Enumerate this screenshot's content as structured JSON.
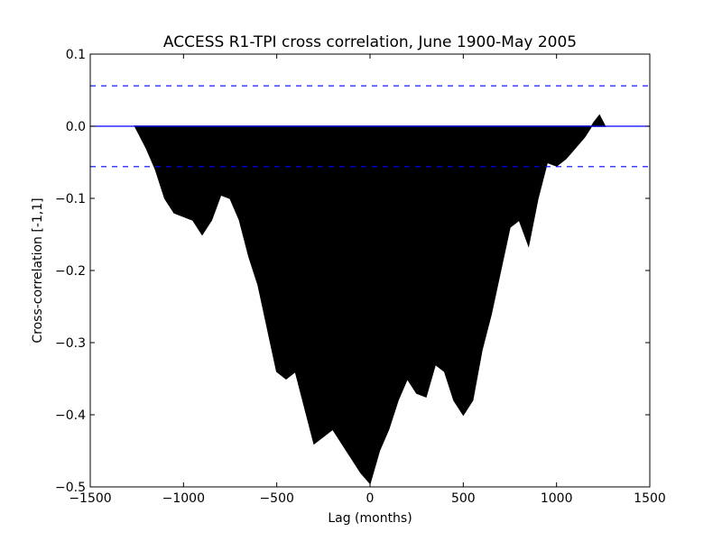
{
  "chart_data": {
    "type": "area",
    "title": "ACCESS R1-TPI cross correlation, June 1900-May 2005",
    "x_label": "Lag (months)",
    "y_label": "Cross-correlation [-1,1]",
    "x": [
      -1260,
      -1200,
      -1150,
      -1100,
      -1050,
      -1000,
      -950,
      -900,
      -850,
      -800,
      -750,
      -700,
      -650,
      -600,
      -550,
      -500,
      -450,
      -400,
      -350,
      -300,
      -250,
      -200,
      -150,
      -100,
      -50,
      0,
      50,
      100,
      150,
      200,
      250,
      300,
      350,
      400,
      450,
      500,
      550,
      600,
      650,
      700,
      750,
      800,
      850,
      900,
      950,
      1000,
      1050,
      1100,
      1150,
      1200,
      1230,
      1260
    ],
    "series": [
      {
        "name": "Cross-correlation",
        "color": "#000000",
        "values": [
          0,
          -0.03,
          -0.06,
          -0.1,
          -0.12,
          -0.125,
          -0.13,
          -0.15,
          -0.13,
          -0.095,
          -0.1,
          -0.13,
          -0.18,
          -0.22,
          -0.28,
          -0.34,
          -0.35,
          -0.34,
          -0.39,
          -0.44,
          -0.43,
          -0.42,
          -0.44,
          -0.46,
          -0.48,
          -0.495,
          -0.45,
          -0.42,
          -0.38,
          -0.35,
          -0.37,
          -0.375,
          -0.33,
          -0.34,
          -0.38,
          -0.4,
          -0.38,
          -0.31,
          -0.26,
          -0.2,
          -0.14,
          -0.13,
          -0.165,
          -0.1,
          -0.05,
          -0.055,
          -0.045,
          -0.03,
          -0.015,
          0.005,
          0.015,
          0
        ]
      }
    ],
    "hlines": [
      {
        "value": 0,
        "color": "#0000ff",
        "style": "solid"
      },
      {
        "value": 0.056,
        "color": "#0000ff",
        "style": "dashed"
      },
      {
        "value": -0.056,
        "color": "#0000ff",
        "style": "dashed"
      }
    ],
    "xlim": [
      -1500,
      1500
    ],
    "xticks": [
      {
        "value": -1500,
        "label": "−1500"
      },
      {
        "value": -1000,
        "label": "−1000"
      },
      {
        "value": -500,
        "label": "−500"
      },
      0,
      500,
      1000,
      1500
    ],
    "ylim": [
      -0.5,
      0.1
    ],
    "yticks": [
      {
        "value": -0.5,
        "label": "−0.5"
      },
      {
        "value": -0.4,
        "label": "−0.4"
      },
      {
        "value": -0.3,
        "label": "−0.3"
      },
      {
        "value": -0.2,
        "label": "−0.2"
      },
      {
        "value": -0.1,
        "label": "−0.1"
      },
      {
        "value": 0,
        "label": "0.0"
      },
      0.1
    ]
  }
}
